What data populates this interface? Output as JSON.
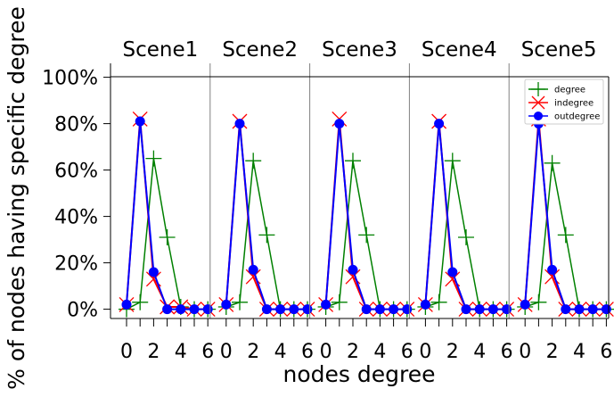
{
  "chart_data": {
    "type": "line",
    "ylabel": "% of nodes having specific degree",
    "xlabel": "nodes degree",
    "ylim": [
      -0.04,
      1.06
    ],
    "yticks": [
      0,
      0.2,
      0.4,
      0.6,
      0.8,
      1.0
    ],
    "ytick_labels": [
      "0%",
      "20%",
      "40%",
      "60%",
      "80%",
      "100%"
    ],
    "x_degrees": [
      0,
      1,
      2,
      3,
      4,
      5,
      6
    ],
    "xtick_labels": [
      "0",
      "2",
      "4",
      "6"
    ],
    "legend_position": "top-right",
    "grid": false,
    "colors": {
      "degree": "#008000",
      "indegree": "#ff0000",
      "outdegree": "#0000ff"
    },
    "series_names": [
      "degree",
      "indegree",
      "outdegree"
    ],
    "panels": [
      {
        "title": "Scene1",
        "degree": [
          0.0,
          0.03,
          0.65,
          0.31,
          0.01,
          0.0,
          0.0
        ],
        "indegree": [
          0.02,
          0.82,
          0.13,
          0.01,
          0.01,
          0.0,
          0.0
        ],
        "outdegree": [
          0.02,
          0.81,
          0.16,
          0.0,
          0.0,
          0.0,
          0.0
        ]
      },
      {
        "title": "Scene2",
        "degree": [
          0.01,
          0.03,
          0.64,
          0.32,
          0.0,
          0.0,
          0.0
        ],
        "indegree": [
          0.02,
          0.81,
          0.14,
          0.0,
          0.0,
          0.0,
          0.0
        ],
        "outdegree": [
          0.02,
          0.8,
          0.17,
          0.0,
          0.0,
          0.0,
          0.0
        ]
      },
      {
        "title": "Scene3",
        "degree": [
          0.01,
          0.03,
          0.64,
          0.32,
          0.0,
          0.0,
          0.0
        ],
        "indegree": [
          0.02,
          0.82,
          0.14,
          0.0,
          0.0,
          0.0,
          0.0
        ],
        "outdegree": [
          0.02,
          0.8,
          0.17,
          0.0,
          0.0,
          0.0,
          0.0
        ]
      },
      {
        "title": "Scene4",
        "degree": [
          0.01,
          0.03,
          0.64,
          0.31,
          0.0,
          0.0,
          0.0
        ],
        "indegree": [
          0.02,
          0.81,
          0.13,
          0.0,
          0.0,
          0.0,
          0.0
        ],
        "outdegree": [
          0.02,
          0.8,
          0.16,
          0.0,
          0.0,
          0.0,
          0.0
        ]
      },
      {
        "title": "Scene5",
        "degree": [
          0.01,
          0.03,
          0.63,
          0.32,
          0.0,
          0.0,
          0.0
        ],
        "indegree": [
          0.02,
          0.82,
          0.14,
          0.0,
          0.0,
          0.0,
          0.0
        ],
        "outdegree": [
          0.02,
          0.8,
          0.17,
          0.0,
          0.0,
          0.0,
          0.0
        ]
      }
    ]
  }
}
